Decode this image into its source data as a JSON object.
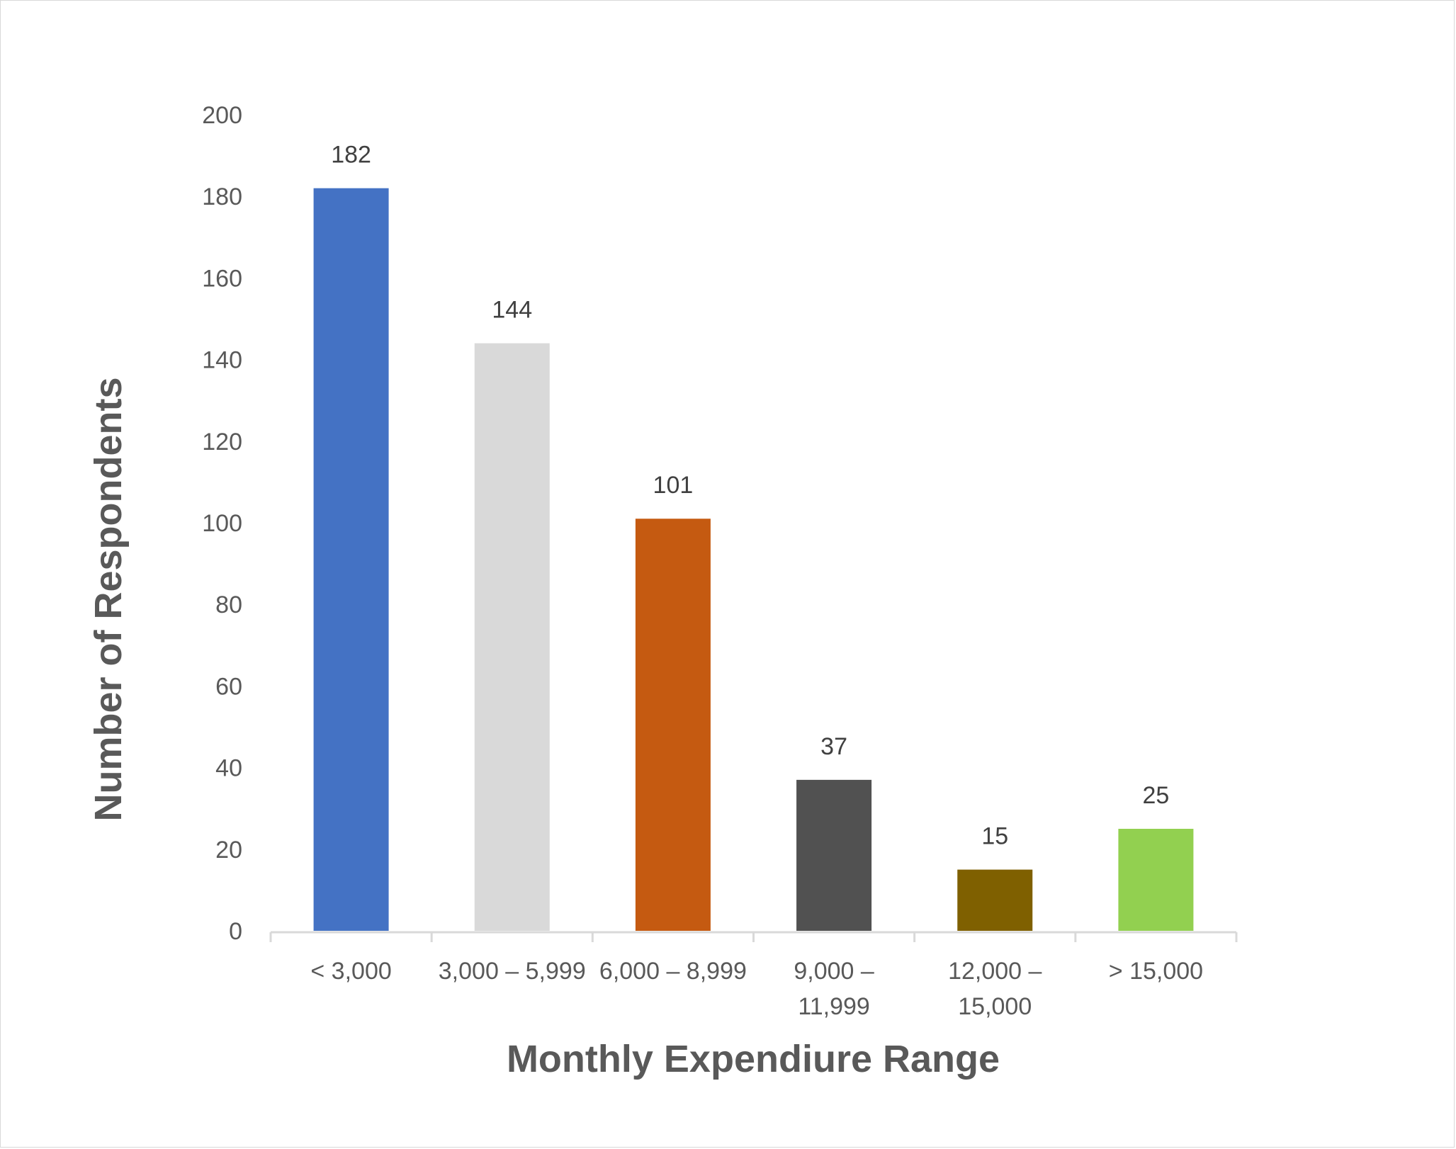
{
  "chart_data": {
    "type": "bar",
    "title": "",
    "xlabel": "Monthly Expendiure Range",
    "ylabel": "Number of Respondents",
    "categories": [
      [
        "< 3,000"
      ],
      [
        "3,000 – 5,999"
      ],
      [
        "6,000 – 8,999"
      ],
      [
        "9,000 –",
        "11,999"
      ],
      [
        "12,000 –",
        "15,000"
      ],
      [
        "> 15,000"
      ]
    ],
    "values": [
      182,
      144,
      101,
      37,
      15,
      25
    ],
    "colors": [
      "#4472C4",
      "#D9D9D9",
      "#C55A11",
      "#515151",
      "#7F6000",
      "#92D050"
    ],
    "ylim": [
      0,
      200
    ],
    "yticks": [
      0,
      20,
      40,
      60,
      80,
      100,
      120,
      140,
      160,
      180,
      200
    ],
    "grid": false,
    "data_labels": true,
    "legend": "none"
  }
}
